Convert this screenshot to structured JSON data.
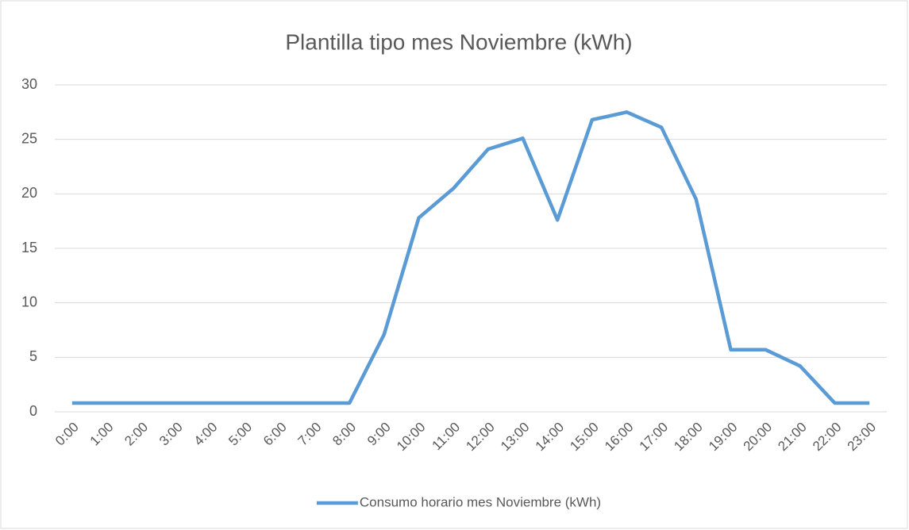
{
  "chart_data": {
    "type": "line",
    "title": "Plantilla tipo mes Noviembre (kWh)",
    "categories": [
      "0:00",
      "1:00",
      "2:00",
      "3:00",
      "4:00",
      "5:00",
      "6:00",
      "7:00",
      "8:00",
      "9:00",
      "10:00",
      "11:00",
      "12:00",
      "13:00",
      "14:00",
      "15:00",
      "16:00",
      "17:00",
      "18:00",
      "19:00",
      "20:00",
      "21:00",
      "22:00",
      "23:00"
    ],
    "series": [
      {
        "name": "Consumo horario mes Noviembre (kWh)",
        "color": "#5b9bd5",
        "values": [
          0.8,
          0.8,
          0.8,
          0.8,
          0.8,
          0.8,
          0.8,
          0.8,
          0.8,
          7.1,
          17.8,
          20.5,
          24.1,
          25.1,
          17.6,
          26.8,
          27.5,
          26.1,
          19.5,
          5.7,
          5.7,
          4.2,
          0.8,
          0.8
        ]
      }
    ],
    "ylim": [
      0,
      30
    ],
    "yticks": [
      0,
      5,
      10,
      15,
      20,
      25,
      30
    ],
    "grid": true,
    "legend": "bottom"
  }
}
